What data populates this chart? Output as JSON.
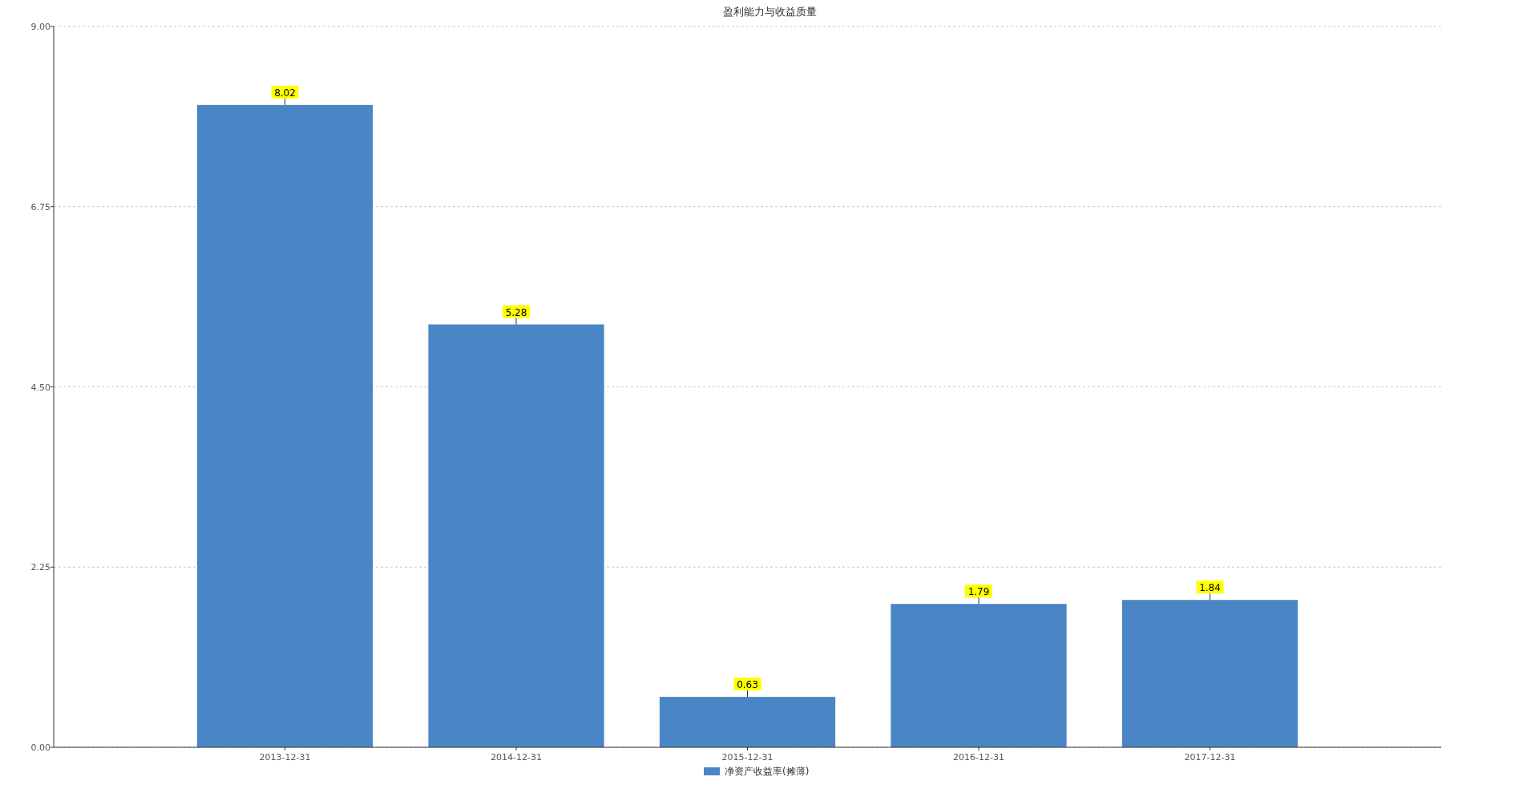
{
  "chart_data": {
    "type": "bar",
    "title": "盈利能力与收益质量",
    "categories": [
      "2013-12-31",
      "2014-12-31",
      "2015-12-31",
      "2016-12-31",
      "2017-12-31"
    ],
    "series": [
      {
        "name": "净资产收益率(摊薄)",
        "color": "#4a86c5",
        "values": [
          8.02,
          5.28,
          0.63,
          1.79,
          1.84
        ]
      }
    ],
    "ylim": [
      0,
      9
    ],
    "yticks": [
      {
        "value": 0,
        "label": "0.00"
      },
      {
        "value": 2.25,
        "label": "2.25"
      },
      {
        "value": 4.5,
        "label": "4.50"
      },
      {
        "value": 6.75,
        "label": "6.75"
      },
      {
        "value": 9,
        "label": "9.00"
      }
    ],
    "grid": "y",
    "legend": "bottom",
    "data_labels": true
  }
}
